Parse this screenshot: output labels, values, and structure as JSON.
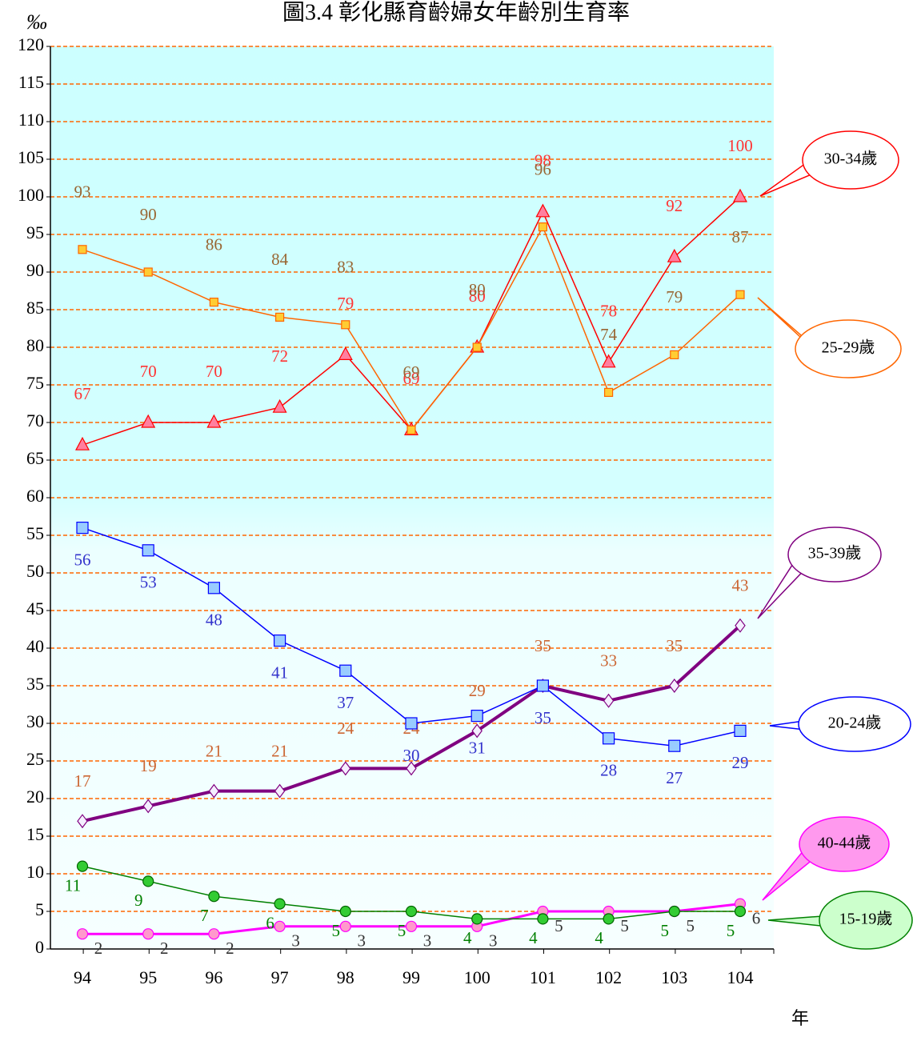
{
  "chart_data": {
    "type": "line",
    "title": "圖3.4 彰化縣育齡婦女年齡別生育率",
    "y_label": "‰",
    "x_label": "年",
    "categories": [
      "94",
      "95",
      "96",
      "97",
      "98",
      "99",
      "100",
      "101",
      "102",
      "103",
      "104"
    ],
    "series": [
      {
        "name": "30-34歲",
        "color": "#ff0000",
        "values": [
          67,
          70,
          70,
          72,
          79,
          69,
          80,
          98,
          78,
          92,
          100
        ]
      },
      {
        "name": "25-29歲",
        "color": "#ff6600",
        "values": [
          93,
          90,
          86,
          84,
          83,
          69,
          80,
          96,
          74,
          79,
          87
        ]
      },
      {
        "name": "35-39歲",
        "color": "#800080",
        "values": [
          17,
          19,
          21,
          21,
          24,
          24,
          29,
          35,
          33,
          35,
          43
        ]
      },
      {
        "name": "20-24歲",
        "color": "#0000ff",
        "values": [
          56,
          53,
          48,
          41,
          37,
          30,
          31,
          35,
          28,
          27,
          29
        ]
      },
      {
        "name": "40-44歲",
        "color": "#ff00ff",
        "values": [
          2,
          2,
          2,
          3,
          3,
          3,
          3,
          5,
          5,
          5,
          6
        ]
      },
      {
        "name": "15-19歲",
        "color": "#008000",
        "values": [
          11,
          9,
          7,
          6,
          5,
          5,
          4,
          4,
          4,
          5,
          5
        ]
      }
    ],
    "ylim": [
      0,
      120
    ],
    "yticks": [
      0,
      5,
      10,
      15,
      20,
      25,
      30,
      35,
      40,
      45,
      50,
      55,
      60,
      65,
      70,
      75,
      80,
      85,
      90,
      95,
      100,
      105,
      110,
      115,
      120
    ],
    "grid": true
  }
}
